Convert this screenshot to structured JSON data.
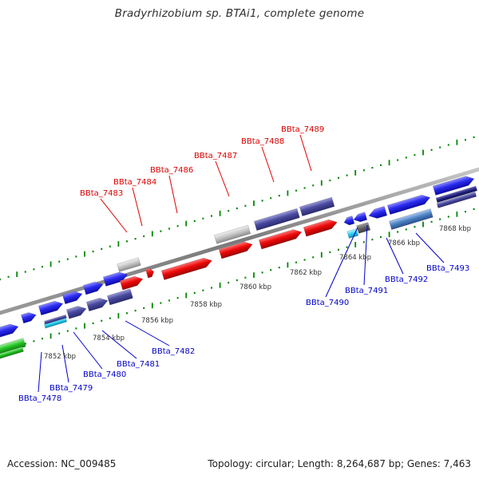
{
  "title": "Bradyrhizobium sp. BTAi1, complete genome",
  "footer": {
    "accession": "Accession: NC_009485",
    "topology": "Topology: circular; Length: 8,264,687 bp; Genes: 7,463"
  },
  "scale_labels": [
    "7852 kbp",
    "7854 kbp",
    "7856 kbp",
    "7858 kbp",
    "7860 kbp",
    "7862 kbp",
    "7864 kbp",
    "7866 kbp",
    "7868 kbp"
  ],
  "genes": [
    {
      "locus": "BBta_7478",
      "strand": "+",
      "color": "#2f2fd8"
    },
    {
      "locus": "BBta_7479",
      "strand": "+",
      "color": "#3bd6f0"
    },
    {
      "locus": "BBta_7480",
      "strand": "+",
      "color": "#3a3a90"
    },
    {
      "locus": "BBta_7481",
      "strand": "+",
      "color": "#3a3a90"
    },
    {
      "locus": "BBta_7482",
      "strand": "+",
      "color": "#3a3a90"
    },
    {
      "locus": "BBta_7483",
      "strand": "-",
      "color": "#b0b0b0"
    },
    {
      "locus": "BBta_7484",
      "strand": "-",
      "color": "#e00000"
    },
    {
      "locus": "BBta_7486",
      "strand": "-",
      "color": "#e00000"
    },
    {
      "locus": "BBta_7487",
      "strand": "-",
      "color": "#b0b0b0"
    },
    {
      "locus": "BBta_7488",
      "strand": "-",
      "color": "#3a3a90"
    },
    {
      "locus": "BBta_7489",
      "strand": "-",
      "color": "#3a3a90"
    },
    {
      "locus": "BBta_7490",
      "strand": "+",
      "color": "#3bd6f0"
    },
    {
      "locus": "BBta_7491",
      "strand": "+",
      "color": "#707070"
    },
    {
      "locus": "BBta_7492",
      "strand": "+",
      "color": "#4a80c0"
    },
    {
      "locus": "BBta_7493",
      "strand": "+",
      "color": "#202070"
    }
  ],
  "colors": {
    "forward_labels": "#0000cc",
    "reverse_labels": "#dd0000",
    "ticks": "#008800",
    "backbone": "#8a8a8a"
  }
}
